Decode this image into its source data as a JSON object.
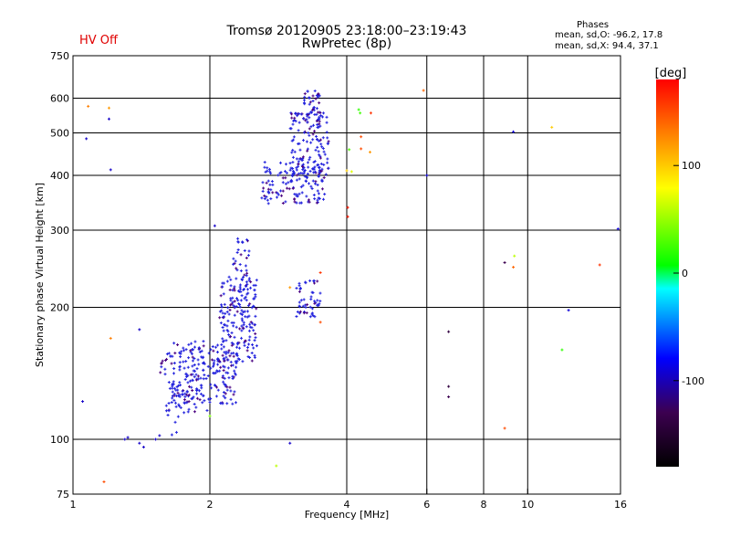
{
  "header": {
    "title": "Tromsø 20120905 23:18:00–23:19:43",
    "subtitle": "RwPretec (8p)",
    "hv_status": "HV Off",
    "hv_color": "#e00000",
    "phases": {
      "heading": "Phases",
      "o_line": "mean, sd,O: -96.2, 17.8",
      "x_line": "mean, sd,X:  94.4, 37.1"
    }
  },
  "chart_data": {
    "type": "scatter",
    "xlabel": "Frequency [MHz]",
    "ylabel": "Stationary phase Virtual Height [km]",
    "xscale": "log",
    "yscale": "log",
    "xlim": [
      1,
      16
    ],
    "ylim": [
      75,
      750
    ],
    "xticks": [
      1,
      2,
      4,
      6,
      8,
      10,
      16
    ],
    "xtick_labels": [
      "1",
      "2",
      "4",
      "6",
      "8",
      "10",
      "16"
    ],
    "xgrid": [
      2,
      4,
      6,
      8,
      10
    ],
    "yticks": [
      75,
      100,
      200,
      300,
      400,
      500,
      600,
      750
    ],
    "ytick_labels": [
      "75",
      "100",
      "200",
      "300",
      "400",
      "500",
      "600",
      "750"
    ],
    "ygrid": [
      100,
      200,
      300,
      400,
      500,
      600
    ],
    "grid": true,
    "colorbar": {
      "label": "[deg]",
      "range": [
        -180,
        180
      ],
      "ticks": [
        -100,
        0,
        100
      ],
      "tick_labels": [
        "-100",
        "0",
        "100"
      ],
      "stops": [
        "#000000",
        "#3c0050",
        "#0000ff",
        "#00ffff",
        "#00ff00",
        "#ffff00",
        "#ff8000",
        "#ff0000"
      ]
    },
    "dot_color": "#2222dd",
    "clusters": [
      {
        "x": [
          1.65,
          2.3
        ],
        "y": [
          120,
          168
        ],
        "n": 200,
        "phase": -100
      },
      {
        "x": [
          2.1,
          2.55
        ],
        "y": [
          150,
          235
        ],
        "n": 170,
        "phase": -100
      },
      {
        "x": [
          2.25,
          2.45
        ],
        "y": [
          215,
          290
        ],
        "n": 40,
        "phase": -100
      },
      {
        "x": [
          1.55,
          2.0
        ],
        "y": [
          115,
          160
        ],
        "n": 60,
        "phase": -100
      },
      {
        "x": [
          1.6,
          1.8
        ],
        "y": [
          102,
          130
        ],
        "n": 20,
        "phase": -100
      },
      {
        "x": [
          3.1,
          3.5
        ],
        "y": [
          190,
          232
        ],
        "n": 50,
        "phase": -100
      },
      {
        "x": [
          2.6,
          3.6
        ],
        "y": [
          345,
          430
        ],
        "n": 140,
        "phase": -100
      },
      {
        "x": [
          3.0,
          3.65
        ],
        "y": [
          400,
          560
        ],
        "n": 130,
        "phase": -100
      },
      {
        "x": [
          3.2,
          3.5
        ],
        "y": [
          520,
          625
        ],
        "n": 40,
        "phase": -100
      }
    ],
    "points": [
      {
        "x": 1.08,
        "y": 575,
        "phase": 130
      },
      {
        "x": 1.07,
        "y": 485,
        "phase": -95
      },
      {
        "x": 1.2,
        "y": 538,
        "phase": -95
      },
      {
        "x": 1.21,
        "y": 412,
        "phase": -95
      },
      {
        "x": 1.2,
        "y": 570,
        "phase": 120
      },
      {
        "x": 1.05,
        "y": 122,
        "phase": -95
      },
      {
        "x": 1.21,
        "y": 170,
        "phase": 130
      },
      {
        "x": 1.4,
        "y": 178,
        "phase": -95
      },
      {
        "x": 1.17,
        "y": 80,
        "phase": 150
      },
      {
        "x": 1.3,
        "y": 100,
        "phase": -95
      },
      {
        "x": 1.32,
        "y": 101,
        "phase": -95
      },
      {
        "x": 1.4,
        "y": 98,
        "phase": -95
      },
      {
        "x": 1.43,
        "y": 96,
        "phase": -95
      },
      {
        "x": 1.52,
        "y": 100,
        "phase": -95
      },
      {
        "x": 1.55,
        "y": 102,
        "phase": -95
      },
      {
        "x": 2.05,
        "y": 307,
        "phase": -95
      },
      {
        "x": 2.0,
        "y": 113,
        "phase": 40
      },
      {
        "x": 2.8,
        "y": 87,
        "phase": 60
      },
      {
        "x": 3.0,
        "y": 98,
        "phase": -95
      },
      {
        "x": 3.0,
        "y": 222,
        "phase": 120
      },
      {
        "x": 3.5,
        "y": 240,
        "phase": 160
      },
      {
        "x": 3.5,
        "y": 185,
        "phase": 150
      },
      {
        "x": 4.02,
        "y": 338,
        "phase": 170
      },
      {
        "x": 4.02,
        "y": 322,
        "phase": 170
      },
      {
        "x": 4.05,
        "y": 458,
        "phase": 30
      },
      {
        "x": 4.1,
        "y": 408,
        "phase": 70
      },
      {
        "x": 4.0,
        "y": 410,
        "phase": 100
      },
      {
        "x": 4.3,
        "y": 490,
        "phase": 150
      },
      {
        "x": 4.3,
        "y": 460,
        "phase": 150
      },
      {
        "x": 4.25,
        "y": 565,
        "phase": 20
      },
      {
        "x": 4.28,
        "y": 555,
        "phase": 25
      },
      {
        "x": 4.5,
        "y": 452,
        "phase": 120
      },
      {
        "x": 4.52,
        "y": 555,
        "phase": 160
      },
      {
        "x": 5.9,
        "y": 625,
        "phase": 140
      },
      {
        "x": 6.0,
        "y": 400,
        "phase": -90
      },
      {
        "x": 6.7,
        "y": 176,
        "phase": -140
      },
      {
        "x": 6.7,
        "y": 132,
        "phase": -140
      },
      {
        "x": 6.7,
        "y": 125,
        "phase": -130
      },
      {
        "x": 8.9,
        "y": 253,
        "phase": -130
      },
      {
        "x": 8.9,
        "y": 106,
        "phase": 150
      },
      {
        "x": 9.3,
        "y": 503,
        "phase": -90
      },
      {
        "x": 9.35,
        "y": 262,
        "phase": 60
      },
      {
        "x": 9.3,
        "y": 247,
        "phase": 140
      },
      {
        "x": 11.3,
        "y": 515,
        "phase": 100
      },
      {
        "x": 11.9,
        "y": 160,
        "phase": 20
      },
      {
        "x": 12.3,
        "y": 197,
        "phase": -90
      },
      {
        "x": 14.4,
        "y": 250,
        "phase": 160
      },
      {
        "x": 15.8,
        "y": 302,
        "phase": -90
      }
    ]
  }
}
